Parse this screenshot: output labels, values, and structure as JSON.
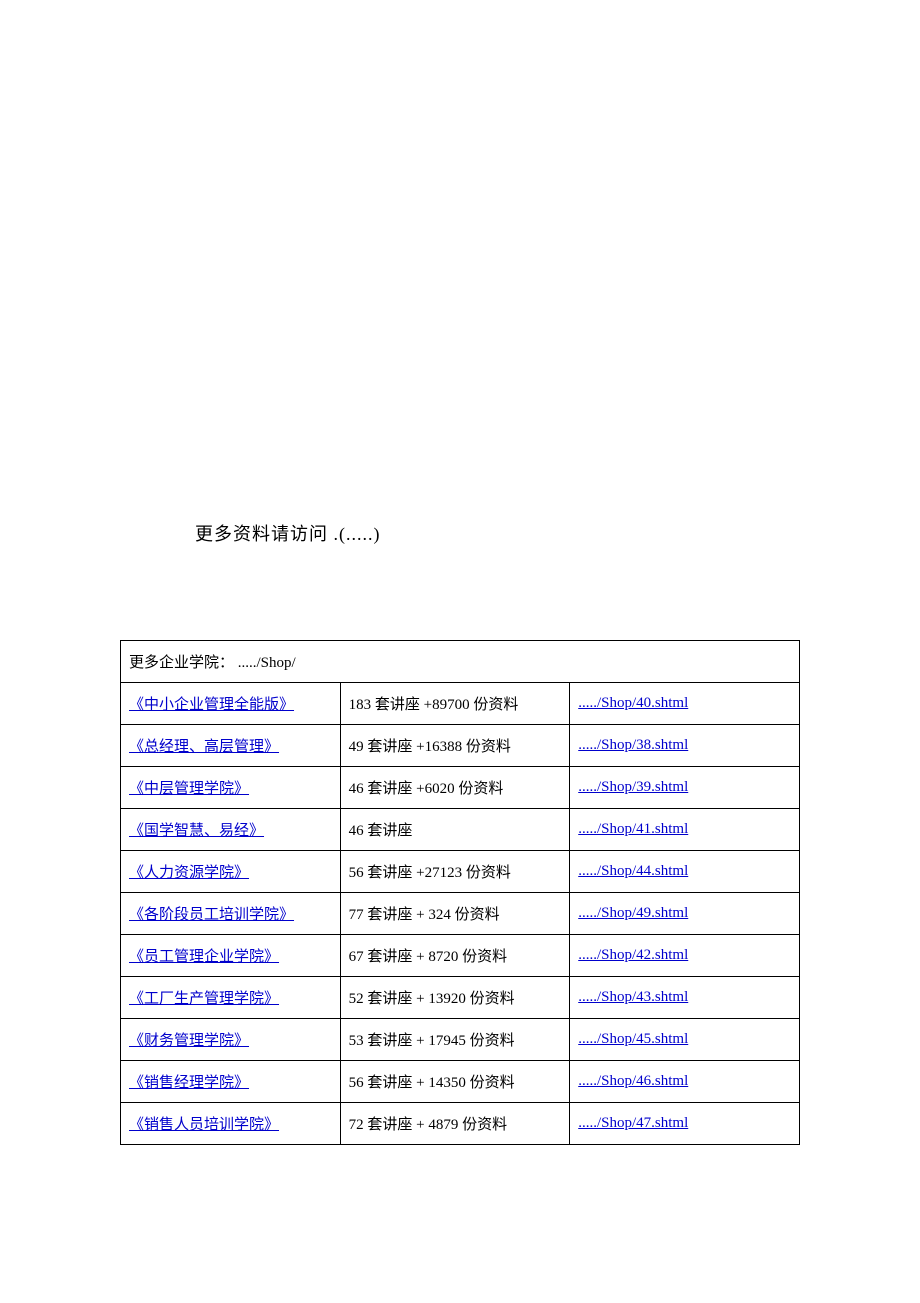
{
  "header": {
    "text": "更多资料请访问   .(.....)"
  },
  "table": {
    "header_row": "更多企业学院：  ...../Shop/",
    "columns": [
      "name",
      "description",
      "link"
    ],
    "rows": [
      {
        "name": "《中小企业管理全能版》",
        "description": "183 套讲座 +89700 份资料",
        "link": "...../Shop/40.shtml"
      },
      {
        "name": "《总经理、高层管理》",
        "description": "49 套讲座 +16388 份资料",
        "link": "...../Shop/38.shtml"
      },
      {
        "name": "《中层管理学院》",
        "description": "46 套讲座 +6020 份资料",
        "link": "...../Shop/39.shtml"
      },
      {
        "name": "《国学智慧、易经》",
        "description": "46 套讲座",
        "link": "...../Shop/41.shtml"
      },
      {
        "name": "《人力资源学院》",
        "description": "56 套讲座 +27123 份资料",
        "link": "...../Shop/44.shtml"
      },
      {
        "name": "《各阶段员工培训学院》",
        "description": "77 套讲座 + 324 份资料",
        "link": "...../Shop/49.shtml"
      },
      {
        "name": "《员工管理企业学院》",
        "description": "67 套讲座 + 8720 份资料",
        "link": "...../Shop/42.shtml"
      },
      {
        "name": "《工厂生产管理学院》",
        "description": "52 套讲座 + 13920 份资料",
        "link": "...../Shop/43.shtml"
      },
      {
        "name": "《财务管理学院》",
        "description": "53 套讲座 + 17945 份资料",
        "link": "...../Shop/45.shtml"
      },
      {
        "name": "《销售经理学院》",
        "description": "56 套讲座 + 14350 份资料",
        "link": "...../Shop/46.shtml"
      },
      {
        "name": "《销售人员培训学院》",
        "description": "72 套讲座 + 4879 份资料",
        "link": "...../Shop/47.shtml"
      }
    ]
  }
}
